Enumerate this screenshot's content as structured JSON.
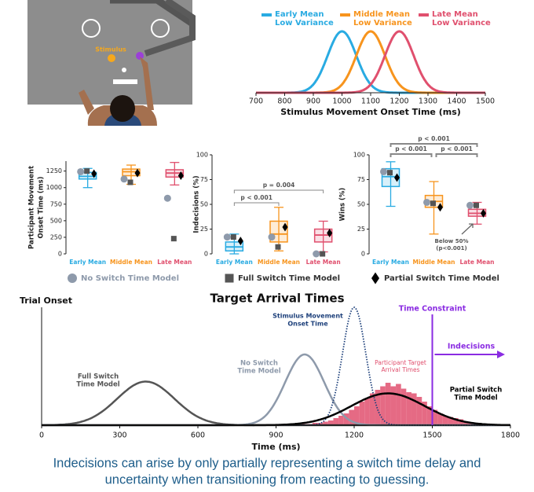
{
  "illustration": {
    "stimulus_label": "Stimulus"
  },
  "chart_data": [
    {
      "type": "density",
      "x_label": "Stimulus Movement Onset Time (ms)",
      "xlim": [
        700,
        1500
      ],
      "xticks": [
        700,
        800,
        900,
        1000,
        1100,
        1200,
        1300,
        1400,
        1500
      ],
      "ylim": [
        0,
        1.05
      ],
      "series": [
        {
          "name": [
            "Early Mean",
            "Low Variance"
          ],
          "color": "#29abe2",
          "mean": 1000,
          "sd": 50,
          "peak": 1
        },
        {
          "name": [
            "Middle Mean",
            "Low Variance"
          ],
          "color": "#f7941d",
          "mean": 1100,
          "sd": 50,
          "peak": 1
        },
        {
          "name": [
            "Late Mean",
            "Low Variance"
          ],
          "color": "#e0506e",
          "mean": 1200,
          "sd": 50,
          "peak": 1
        }
      ]
    },
    {
      "type": "box",
      "y_label": [
        "Participant Movement",
        "Onset Time (ms)"
      ],
      "categories": [
        "Early Mean",
        "Middle Mean",
        "Late Mean"
      ],
      "colors": [
        "#29abe2",
        "#f7941d",
        "#e0506e"
      ],
      "ylim": [
        0,
        1400
      ],
      "yticks": [
        0,
        250,
        500,
        750,
        1000,
        1250
      ],
      "boxes": [
        {
          "low": 1000,
          "q1": 1130,
          "median": 1170,
          "q3": 1230,
          "high": 1290
        },
        {
          "low": 1050,
          "q1": 1180,
          "median": 1240,
          "q3": 1280,
          "high": 1340
        },
        {
          "low": 1040,
          "q1": 1160,
          "median": 1220,
          "q3": 1270,
          "high": 1380
        }
      ],
      "series": [
        {
          "values": [
            1240,
            1130,
            840
          ]
        },
        {
          "values": [
            1250,
            1080,
            230
          ]
        },
        {
          "values": [
            1210,
            1220,
            1180
          ]
        }
      ]
    },
    {
      "type": "box",
      "y_label": [
        "Indecisions (%)"
      ],
      "categories": [
        "Early Mean",
        "Middle Mean",
        "Late Mean"
      ],
      "colors": [
        "#29abe2",
        "#f7941d",
        "#e0506e"
      ],
      "ylim": [
        0,
        100
      ],
      "yticks": [
        0,
        25,
        50,
        75,
        100
      ],
      "boxes": [
        {
          "low": 0,
          "q1": 3,
          "median": 7,
          "q3": 12,
          "high": 20
        },
        {
          "low": 3,
          "q1": 12,
          "median": 20,
          "q3": 33,
          "high": 47
        },
        {
          "low": 2,
          "q1": 12,
          "median": 19,
          "q3": 25,
          "high": 33
        }
      ],
      "series": [
        {
          "values": [
            17,
            17,
            0
          ]
        },
        {
          "values": [
            17,
            7,
            0
          ]
        },
        {
          "values": [
            13,
            27,
            21
          ]
        }
      ],
      "annotations": [
        {
          "text": "p < 0.001",
          "pair": [
            0,
            1
          ]
        },
        {
          "text": "p = 0.004",
          "pair": [
            0,
            2
          ]
        }
      ]
    },
    {
      "type": "box",
      "y_label": [
        "Wins (%)"
      ],
      "categories": [
        "Early Mean",
        "Middle Mean",
        "Late Mean"
      ],
      "colors": [
        "#29abe2",
        "#f7941d",
        "#e0506e"
      ],
      "ylim": [
        0,
        100
      ],
      "yticks": [
        0,
        25,
        50,
        75,
        100
      ],
      "boxes": [
        {
          "low": 48,
          "q1": 68,
          "median": 78,
          "q3": 86,
          "high": 93
        },
        {
          "low": 20,
          "q1": 47,
          "median": 53,
          "q3": 59,
          "high": 73
        },
        {
          "low": 30,
          "q1": 38,
          "median": 41,
          "q3": 45,
          "high": 52
        }
      ],
      "series": [
        {
          "values": [
            83,
            52,
            49
          ]
        },
        {
          "values": [
            82,
            51,
            49
          ]
        },
        {
          "values": [
            77,
            47,
            41
          ]
        }
      ],
      "annotations": [
        {
          "text": "p < 0.001",
          "pair": [
            0,
            1
          ]
        },
        {
          "text": "p < 0.001",
          "pair": [
            1,
            2
          ]
        },
        {
          "text": "p < 0.001",
          "pair": [
            0,
            2
          ]
        }
      ],
      "note": [
        "Below 50%",
        "(p<0.001)"
      ]
    },
    {
      "type": "density",
      "title": "Target Arrival Times",
      "start_label": "Trial Onset",
      "x_label": "Time (ms)",
      "xlim": [
        0,
        1800
      ],
      "xticks": [
        0,
        300,
        600,
        900,
        1200,
        1500,
        1800
      ],
      "ylim": [
        0,
        1.05
      ],
      "series": [
        {
          "name": [
            "Full Switch",
            "Time Model"
          ],
          "color": "#555555",
          "mean": 400,
          "sd": 110,
          "peak": 0.37
        },
        {
          "name": [
            "No Switch",
            "Time Model"
          ],
          "color": "#8e9aab",
          "mean": 1010,
          "sd": 75,
          "peak": 0.6
        },
        {
          "name": [
            "Stimulus Movement",
            "Onset Time"
          ],
          "color": "#1c3f7a",
          "mean": 1200,
          "sd": 45,
          "peak": 1,
          "style": "dotted"
        },
        {
          "name": [
            "Partial Switch",
            "Time Model"
          ],
          "color": "#000000",
          "mean": 1330,
          "sd": 140,
          "peak": 0.27
        }
      ],
      "histogram": {
        "name": [
          "Participant Target",
          "Arrival Times"
        ],
        "color": "#e0506e",
        "bins": [
          1000,
          1020,
          1040,
          1060,
          1080,
          1100,
          1120,
          1140,
          1160,
          1180,
          1200,
          1220,
          1240,
          1260,
          1280,
          1300,
          1320,
          1340,
          1360,
          1380,
          1400,
          1420,
          1440,
          1460,
          1480,
          1500,
          1520,
          1540,
          1560,
          1580,
          1600,
          1620,
          1640,
          1660
        ],
        "counts": [
          0.01,
          0.01,
          0.02,
          0.02,
          0.03,
          0.04,
          0.06,
          0.08,
          0.1,
          0.13,
          0.16,
          0.2,
          0.23,
          0.27,
          0.3,
          0.33,
          0.36,
          0.33,
          0.35,
          0.31,
          0.28,
          0.27,
          0.24,
          0.2,
          0.16,
          0.13,
          0.1,
          0.08,
          0.07,
          0.06,
          0.05,
          0.03,
          0.02
        ]
      },
      "threshold": {
        "value": 1500,
        "label": "Time Constraint",
        "color": "#8a2be2"
      },
      "region_label": "Indecisions"
    }
  ],
  "legend": [
    {
      "name": "No Switch Time Model",
      "shape": "circle",
      "color": "#8e9aab"
    },
    {
      "name": "Full Switch Time Model",
      "shape": "square",
      "color": "#555555"
    },
    {
      "name": "Partial Switch Time Model",
      "shape": "diamond",
      "color": "#000000"
    }
  ],
  "caption": [
    "Indecisions can arise by only partially representing a switch time delay and",
    "uncertainty when transitioning from reacting to guessing."
  ]
}
